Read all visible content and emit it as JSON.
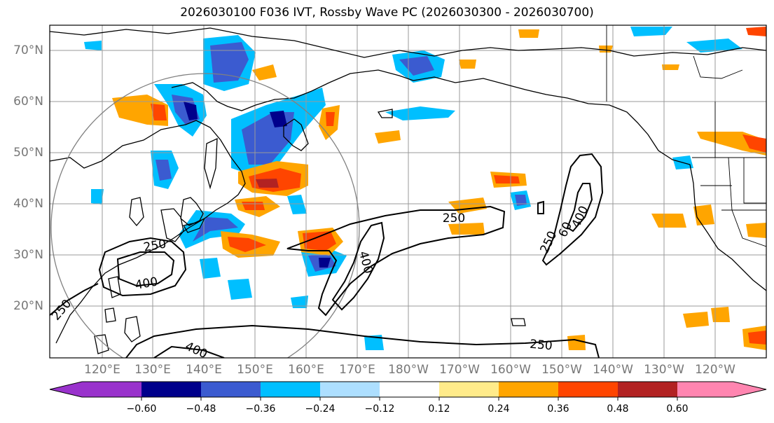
{
  "title": "2026030100 F036 IVT, Rossby Wave PC (2026030300 - 2026030700)",
  "lat_labels": [
    "70°N",
    "60°N",
    "50°N",
    "40°N",
    "30°N",
    "20°N"
  ],
  "lon_labels": [
    "120°E",
    "130°E",
    "140°E",
    "150°E",
    "160°E",
    "170°E",
    "180°W",
    "170°W",
    "160°W",
    "150°W",
    "140°W",
    "130°W",
    "120°W"
  ],
  "colorbar": {
    "ticks": [
      "−0.60",
      "−0.48",
      "−0.36",
      "−0.24",
      "−0.12",
      "0.12",
      "0.24",
      "0.36",
      "0.48",
      "0.60"
    ],
    "colors": [
      "#9932CC",
      "#00008B",
      "#3B5BD0",
      "#00BFFF",
      "#ADDFFF",
      "#FFFFFF",
      "#FFEB8A",
      "#FFA500",
      "#FF4500",
      "#B22222",
      "#FF85B0"
    ]
  },
  "contour_labels": [
    "250",
    "400",
    "250",
    "400",
    "250",
    "400",
    "250",
    "250",
    "400",
    "250",
    "60"
  ]
}
